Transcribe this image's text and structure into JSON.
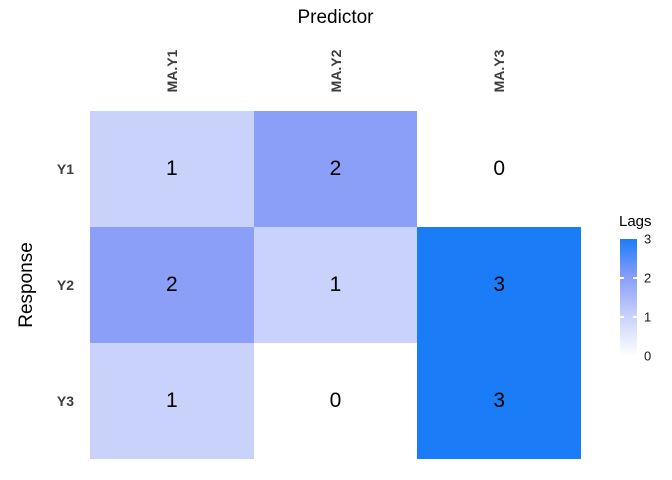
{
  "chart_data": {
    "type": "heatmap",
    "title": "",
    "xlabel": "Predictor",
    "ylabel": "Response",
    "columns": [
      "MA.Y1",
      "MA.Y2",
      "MA.Y3"
    ],
    "rows": [
      "Y1",
      "Y2",
      "Y3"
    ],
    "values": [
      [
        1,
        2,
        0
      ],
      [
        2,
        1,
        3
      ],
      [
        1,
        0,
        3
      ]
    ],
    "legend": {
      "title": "Lags",
      "ticks": [
        "3",
        "2",
        "1",
        "0"
      ],
      "min": 0,
      "max": 3,
      "position": "right"
    },
    "colors": {
      "lag0": "#ffffff",
      "lag1": "#c9d2fa",
      "lag2": "#8b9ff9",
      "lag3": "#1b7cf7"
    }
  }
}
